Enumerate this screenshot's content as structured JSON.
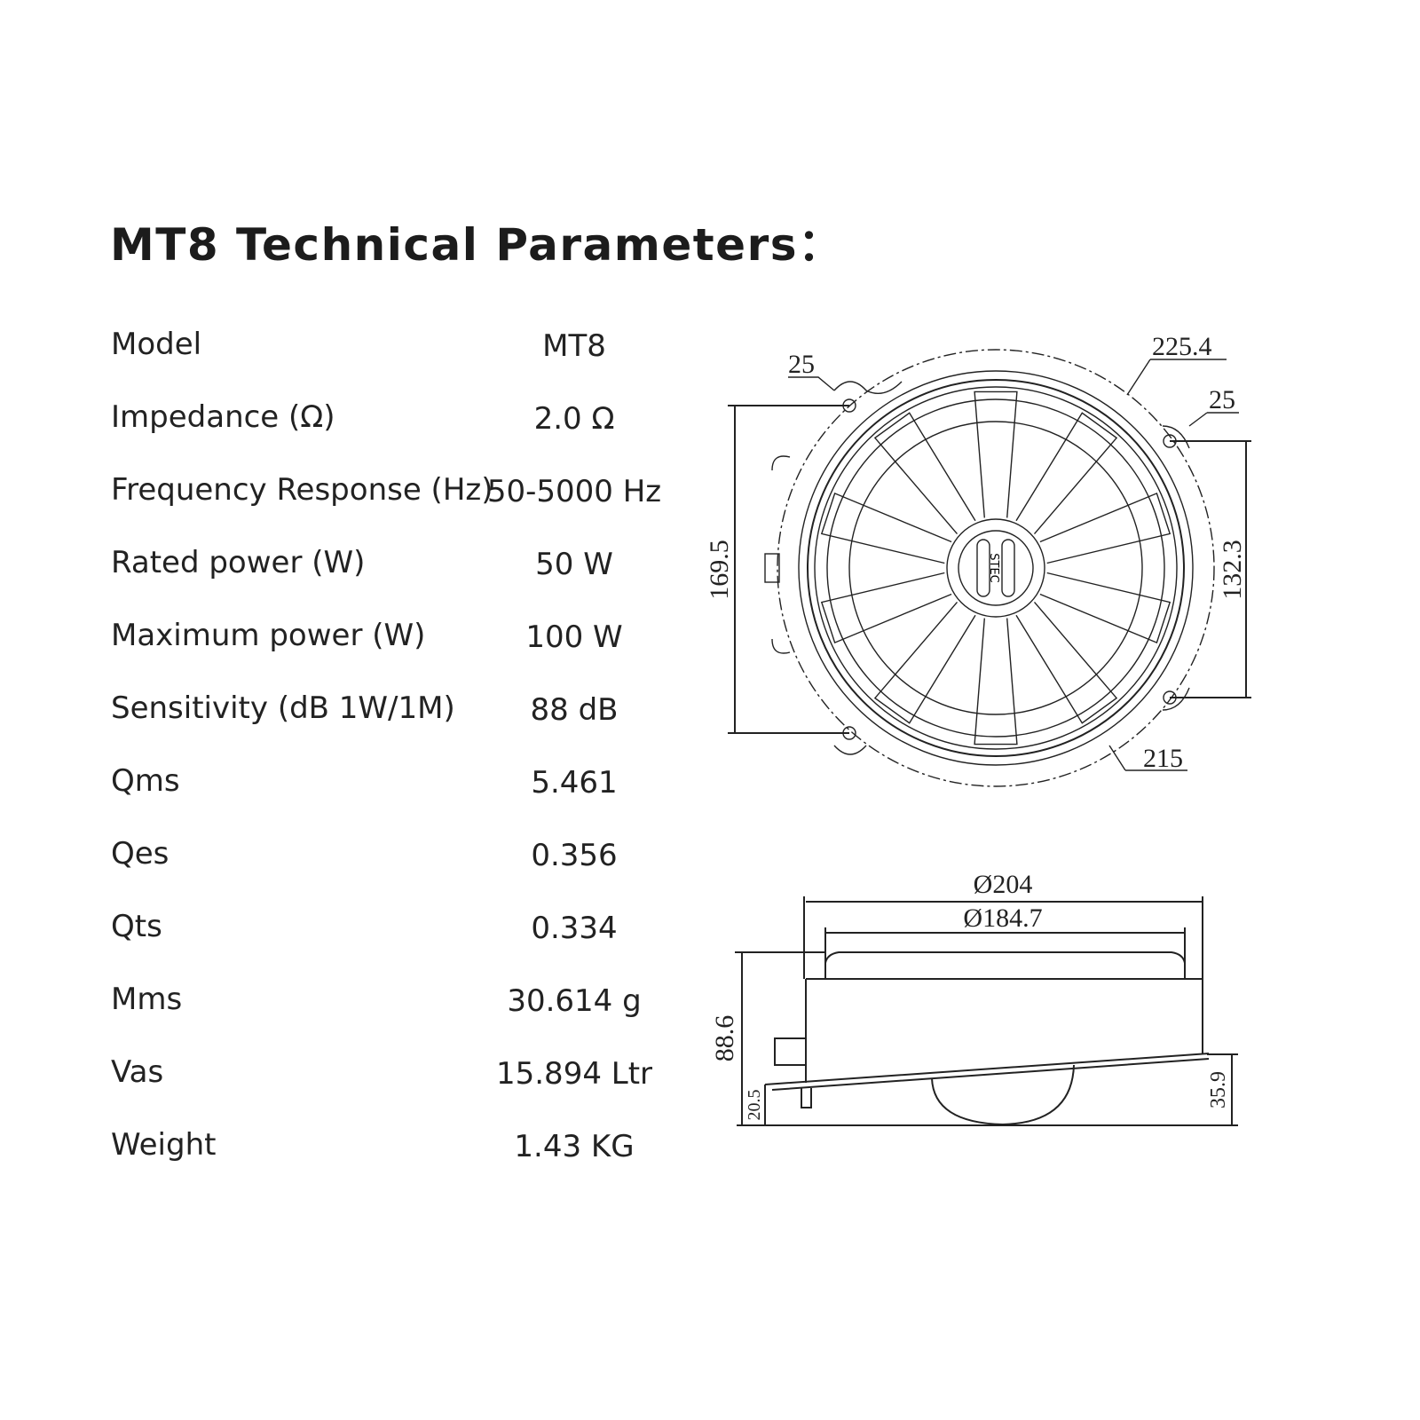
{
  "title": "MT8 Technical Parameters：",
  "specs": [
    {
      "label": "Model",
      "value": "MT8"
    },
    {
      "label": "Impedance (Ω)",
      "value": "2.0 Ω"
    },
    {
      "label": "Frequency Response (Hz)",
      "value": "50-5000 Hz"
    },
    {
      "label": "Rated power (W)",
      "value": "50 W"
    },
    {
      "label": "Maximum power (W)",
      "value": "100 W"
    },
    {
      "label": "Sensitivity (dB 1W/1M)",
      "value": "88 dB"
    },
    {
      "label": "Qms",
      "value": "5.461"
    },
    {
      "label": "Qes",
      "value": "0.356"
    },
    {
      "label": "Qts",
      "value": "0.334"
    },
    {
      "label": "Mms",
      "value": "30.614 g"
    },
    {
      "label": "Vas",
      "value": "15.894 Ltr"
    },
    {
      "label": "Weight",
      "value": "1.43 KG"
    }
  ],
  "front_view": {
    "logo": "STEC",
    "dims": {
      "hole_left": "25",
      "outer_diameter": "225.4",
      "hole_right": "25",
      "height_left": "169.5",
      "height_right": "132.3",
      "inner_diameter": "215"
    }
  },
  "side_view": {
    "dims": {
      "outer": "Ø204",
      "inner": "Ø184.7",
      "depth": "88.6",
      "low": "20.5",
      "high": "35.9"
    }
  }
}
